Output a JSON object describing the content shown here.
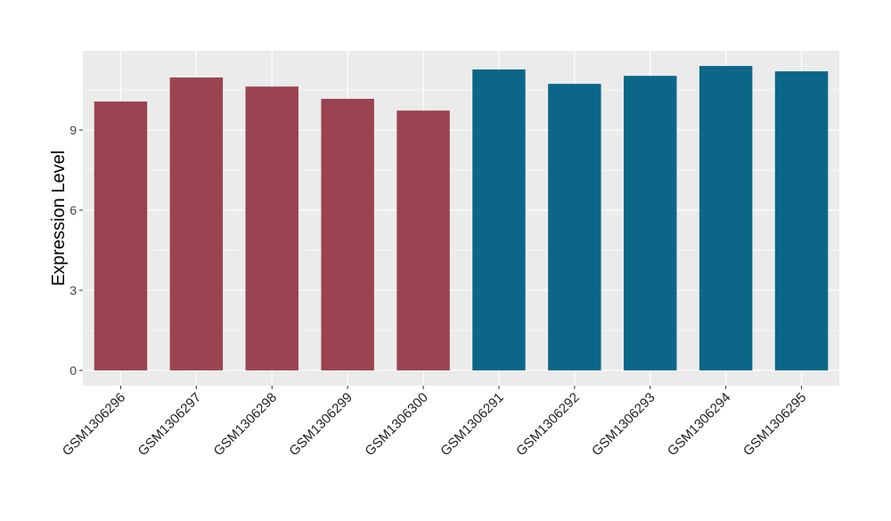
{
  "chart_data": {
    "type": "bar",
    "title": "",
    "xlabel": "",
    "ylabel": "Expression Level",
    "categories": [
      "GSM1306296",
      "GSM1306297",
      "GSM1306298",
      "GSM1306299",
      "GSM1306300",
      "GSM1306291",
      "GSM1306292",
      "GSM1306293",
      "GSM1306294",
      "GSM1306295"
    ],
    "values": [
      10.07,
      10.97,
      10.63,
      10.17,
      9.73,
      11.27,
      10.73,
      11.03,
      11.4,
      11.2
    ],
    "bar_colors": [
      "#9b4350",
      "#9b4350",
      "#9b4350",
      "#9b4350",
      "#9b4350",
      "#0b6688",
      "#0b6688",
      "#0b6688",
      "#0b6688",
      "#0b6688"
    ],
    "yticks": [
      0,
      3,
      6,
      9
    ],
    "ylim": [
      -0.57,
      11.97
    ],
    "grid": true,
    "panel_background": "#ebebeb"
  }
}
